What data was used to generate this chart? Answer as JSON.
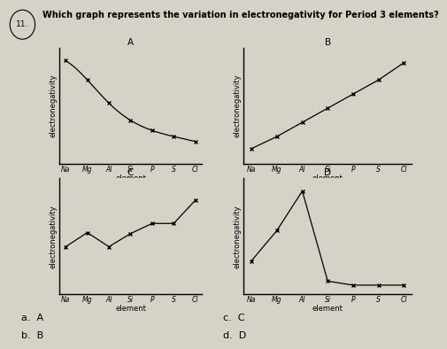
{
  "question": "Which graph represents the variation in electronegativity for Period 3 elements?",
  "question_number": "11.",
  "elements": [
    "Na",
    "Mg",
    "Al",
    "Si",
    "P",
    "S",
    "Cl"
  ],
  "graph_A": {
    "label": "A",
    "y_values": [
      0.97,
      0.78,
      0.55,
      0.38,
      0.28,
      0.22,
      0.17
    ]
  },
  "graph_B": {
    "label": "B",
    "y_values": [
      0.1,
      0.22,
      0.36,
      0.5,
      0.64,
      0.78,
      0.95
    ]
  },
  "graph_C": {
    "label": "C",
    "y_values": [
      0.42,
      0.56,
      0.42,
      0.55,
      0.65,
      0.65,
      0.88
    ]
  },
  "graph_D": {
    "label": "D",
    "y_values": [
      0.28,
      0.58,
      0.97,
      0.08,
      0.04,
      0.04,
      0.04
    ]
  },
  "choices_left": [
    "a.  A",
    "b.  B"
  ],
  "choices_right": [
    "c.  C",
    "d.  D"
  ],
  "ylabel": "electronegativity",
  "xlabel": "element",
  "background_color": "#d6d2c8",
  "line_color": "#000000",
  "marker": "x",
  "title_fontsize": 7.5,
  "label_fontsize": 6.0,
  "tick_fontsize": 5.5,
  "choice_fontsize": 8.0
}
